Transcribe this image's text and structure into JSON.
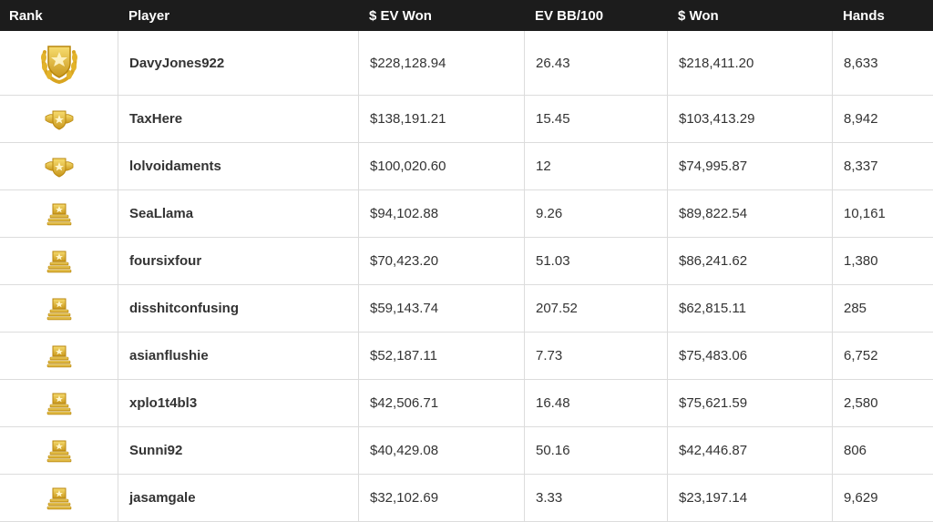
{
  "table": {
    "headers": {
      "rank": "Rank",
      "player": "Player",
      "ev_won": "$ EV Won",
      "ev_bb": "EV BB/100",
      "won": "$ Won",
      "hands": "Hands"
    },
    "rows": [
      {
        "player": "DavyJones922",
        "ev_won": "$228,128.94",
        "ev_bb": "26.43",
        "won": "$218,411.20",
        "hands": "8,633",
        "badge": "laurel-shield-icon"
      },
      {
        "player": "TaxHere",
        "ev_won": "$138,191.21",
        "ev_bb": "15.45",
        "won": "$103,413.29",
        "hands": "8,942",
        "badge": "winged-badge-icon"
      },
      {
        "player": "lolvoidaments",
        "ev_won": "$100,020.60",
        "ev_bb": "12",
        "won": "$74,995.87",
        "hands": "8,337",
        "badge": "winged-badge-icon"
      },
      {
        "player": "SeaLlama",
        "ev_won": "$94,102.88",
        "ev_bb": "9.26",
        "won": "$89,822.54",
        "hands": "10,161",
        "badge": "rank-plaque-icon"
      },
      {
        "player": "foursixfour",
        "ev_won": "$70,423.20",
        "ev_bb": "51.03",
        "won": "$86,241.62",
        "hands": "1,380",
        "badge": "rank-plaque-icon"
      },
      {
        "player": "disshitconfusing",
        "ev_won": "$59,143.74",
        "ev_bb": "207.52",
        "won": "$62,815.11",
        "hands": "285",
        "badge": "rank-plaque-icon"
      },
      {
        "player": "asianflushie",
        "ev_won": "$52,187.11",
        "ev_bb": "7.73",
        "won": "$75,483.06",
        "hands": "6,752",
        "badge": "rank-plaque-icon"
      },
      {
        "player": "xplo1t4bl3",
        "ev_won": "$42,506.71",
        "ev_bb": "16.48",
        "won": "$75,621.59",
        "hands": "2,580",
        "badge": "rank-plaque-icon"
      },
      {
        "player": "Sunni92",
        "ev_won": "$40,429.08",
        "ev_bb": "50.16",
        "won": "$42,446.87",
        "hands": "806",
        "badge": "rank-plaque-icon"
      },
      {
        "player": "jasamgale",
        "ev_won": "$32,102.69",
        "ev_bb": "3.33",
        "won": "$23,197.14",
        "hands": "9,629",
        "badge": "rank-plaque-icon"
      }
    ]
  },
  "colors": {
    "header_bg": "#1c1c1c",
    "money": "#2e8b2e",
    "gold": "#e6b422",
    "border": "#dcdcdc"
  }
}
